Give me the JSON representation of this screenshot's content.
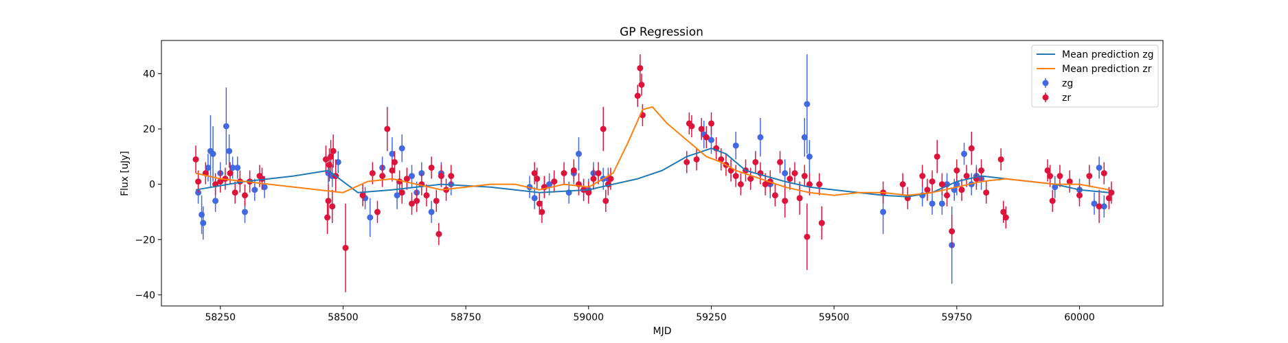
{
  "chart_data": {
    "type": "scatter",
    "title": "GP Regression",
    "xlabel": "MJD",
    "ylabel": "Flux [uJy]",
    "xlim": [
      58130,
      60170
    ],
    "ylim": [
      -44,
      52
    ],
    "xticks": [
      58250,
      58500,
      58750,
      59000,
      59250,
      59500,
      59750,
      60000
    ],
    "yticks": [
      -40,
      -20,
      0,
      20,
      40
    ],
    "grid": false,
    "legend_position": "top-right",
    "legend": [
      "Mean prediction zg",
      "Mean prediction zr",
      "zg",
      "zr"
    ],
    "colors": {
      "mean_zg": "#1f77b4",
      "mean_zr": "#ff7f0e",
      "zg": "#4169e1",
      "zr": "#dc143c"
    },
    "mean_prediction_zg": {
      "x": [
        58200,
        58300,
        58400,
        58470,
        58530,
        58600,
        58700,
        58800,
        58900,
        59000,
        59050,
        59100,
        59150,
        59200,
        59250,
        59280,
        59320,
        59400,
        59450,
        59500,
        59550,
        59600,
        59650,
        59700,
        59750,
        59800,
        59850,
        59900,
        59950,
        60000,
        60060
      ],
      "y": [
        -2,
        1,
        3,
        5,
        -3,
        -2,
        0,
        -1,
        -3,
        -2,
        0,
        2,
        5,
        10,
        13,
        11,
        5,
        1,
        -1,
        -2,
        -3,
        -4,
        -4.5,
        -3,
        1,
        3,
        2,
        1,
        0,
        -2,
        -3
      ]
    },
    "mean_prediction_zr": {
      "x": [
        58200,
        58250,
        58300,
        58350,
        58400,
        58450,
        58500,
        58550,
        58600,
        58650,
        58700,
        58750,
        58800,
        58850,
        58900,
        58950,
        59000,
        59050,
        59080,
        59110,
        59130,
        59160,
        59200,
        59240,
        59270,
        59300,
        59350,
        59400,
        59450,
        59500,
        59550,
        59600,
        59650,
        59700,
        59750,
        59800,
        59850,
        59900,
        59950,
        60000,
        60060
      ],
      "y": [
        4,
        2,
        1,
        0,
        -1,
        -2,
        -3,
        1,
        2,
        0,
        -2,
        -1,
        0,
        0,
        -2,
        0,
        -1,
        4,
        15,
        27,
        28,
        22,
        16,
        10,
        8,
        5,
        2,
        -1,
        -3,
        -4,
        -3,
        -3,
        -4,
        -3,
        -1,
        1,
        2,
        1,
        0,
        0,
        -2
      ]
    },
    "series": [
      {
        "name": "zg",
        "x": [
          58205,
          58212,
          58215,
          58225,
          58230,
          58235,
          58240,
          58250,
          58262,
          58268,
          58275,
          58285,
          58300,
          58320,
          58340,
          58470,
          58478,
          58490,
          58545,
          58555,
          58580,
          58600,
          58610,
          58620,
          58640,
          58650,
          58660,
          58680,
          58700,
          58720,
          58880,
          58890,
          58910,
          58920,
          58960,
          58970,
          58980,
          58990,
          59000,
          59010,
          59030,
          59040,
          59235,
          59250,
          59300,
          59350,
          59370,
          59400,
          59440,
          59445,
          59450,
          59600,
          59680,
          59700,
          59720,
          59730,
          59740,
          59745,
          59750,
          59765,
          59780,
          59790,
          59800,
          59950,
          60000,
          60030,
          60040,
          60050
        ],
        "y": [
          -3,
          -11,
          -14,
          6,
          12,
          11,
          -6,
          4,
          21,
          12,
          6,
          6,
          -10,
          -2,
          -1,
          4,
          3,
          8,
          -5,
          -12,
          6,
          11,
          -4,
          13,
          3,
          -3,
          4,
          -10,
          4,
          0,
          -1,
          -5,
          -1,
          0,
          -3,
          4,
          11,
          -2,
          -2,
          4,
          2,
          2,
          18,
          16,
          14,
          17,
          0,
          4,
          17,
          29,
          10,
          -10,
          -4,
          -7,
          -7,
          0,
          -22,
          -2,
          0,
          11,
          0,
          3,
          2,
          -1,
          -2,
          -7,
          6,
          -8
        ],
        "err": [
          4,
          7,
          6,
          5,
          13,
          10,
          4,
          4,
          14,
          6,
          4,
          4,
          4,
          4,
          4,
          4,
          4,
          4,
          4,
          7,
          4,
          6,
          5,
          5,
          4,
          4,
          4,
          4,
          4,
          4,
          4,
          4,
          4,
          4,
          4,
          4,
          6,
          4,
          4,
          4,
          4,
          4,
          5,
          5,
          5,
          7,
          5,
          5,
          7,
          18,
          6,
          8,
          4,
          4,
          4,
          4,
          14,
          4,
          4,
          4,
          4,
          4,
          4,
          4,
          4,
          4,
          4,
          4
        ]
      },
      {
        "name": "zr",
        "x": [
          58200,
          58205,
          58220,
          58240,
          58250,
          58260,
          58270,
          58280,
          58290,
          58300,
          58310,
          58330,
          58335,
          58465,
          58468,
          58470,
          58472,
          58475,
          58478,
          58480,
          58485,
          58505,
          58540,
          58560,
          58570,
          58580,
          58590,
          58600,
          58605,
          58615,
          58620,
          58630,
          58640,
          58650,
          58660,
          58670,
          58680,
          58690,
          58695,
          58700,
          58710,
          58720,
          58890,
          58895,
          58900,
          58905,
          58910,
          58930,
          58950,
          58970,
          58980,
          58990,
          59000,
          59010,
          59020,
          59030,
          59035,
          59040,
          59045,
          59100,
          59105,
          59108,
          59110,
          59200,
          59205,
          59210,
          59220,
          59230,
          59240,
          59250,
          59260,
          59270,
          59280,
          59290,
          59300,
          59310,
          59320,
          59330,
          59340,
          59350,
          59360,
          59370,
          59380,
          59390,
          59400,
          59410,
          59420,
          59430,
          59440,
          59445,
          59450,
          59470,
          59475,
          59600,
          59640,
          59650,
          59680,
          59690,
          59700,
          59710,
          59720,
          59730,
          59740,
          59750,
          59760,
          59770,
          59780,
          59790,
          59800,
          59810,
          59840,
          59845,
          59850,
          59935,
          59940,
          59945,
          59960,
          59980,
          60000,
          60020,
          60040,
          60050,
          60060,
          60065
        ],
        "y": [
          9,
          1,
          4,
          0,
          1,
          2,
          4,
          -3,
          1,
          -4,
          1,
          3,
          2,
          9,
          -12,
          -6,
          7,
          10,
          -8,
          12,
          3,
          -23,
          -4,
          4,
          -10,
          3,
          20,
          5,
          8,
          1,
          -3,
          2,
          -7,
          -6,
          0,
          -4,
          6,
          -6,
          -18,
          3,
          -2,
          3,
          4,
          2,
          -7,
          -10,
          -1,
          1,
          4,
          5,
          0,
          -2,
          -3,
          2,
          4,
          20,
          -6,
          0,
          2,
          32,
          42,
          36,
          25,
          8,
          22,
          21,
          9,
          20,
          17,
          22,
          13,
          9,
          7,
          5,
          3,
          0,
          5,
          2,
          8,
          4,
          0,
          1,
          -4,
          8,
          -6,
          2,
          4,
          -5,
          3,
          -19,
          0,
          0,
          -14,
          -3,
          0,
          -5,
          3,
          -2,
          1,
          10,
          0,
          -4,
          -17,
          5,
          -2,
          3,
          13,
          2,
          5,
          -3,
          9,
          -10,
          -12,
          5,
          3,
          -6,
          3,
          1,
          -4,
          3,
          -8,
          4,
          -5,
          -3
        ],
        "err": [
          5,
          4,
          4,
          4,
          4,
          4,
          4,
          4,
          4,
          4,
          4,
          4,
          4,
          5,
          6,
          6,
          6,
          6,
          6,
          6,
          6,
          16,
          4,
          4,
          4,
          4,
          8,
          4,
          4,
          4,
          4,
          4,
          4,
          4,
          4,
          4,
          4,
          4,
          4,
          4,
          4,
          4,
          4,
          4,
          4,
          4,
          4,
          4,
          4,
          4,
          4,
          4,
          4,
          4,
          4,
          8,
          4,
          4,
          4,
          4,
          5,
          4,
          4,
          4,
          4,
          4,
          4,
          4,
          4,
          4,
          4,
          4,
          4,
          4,
          4,
          4,
          4,
          4,
          4,
          4,
          4,
          4,
          4,
          4,
          6,
          4,
          4,
          6,
          4,
          12,
          4,
          4,
          6,
          4,
          4,
          4,
          4,
          4,
          4,
          6,
          4,
          4,
          6,
          4,
          4,
          4,
          6,
          4,
          4,
          4,
          4,
          4,
          4,
          4,
          4,
          4,
          4,
          4,
          4,
          4,
          6,
          4,
          4,
          4
        ]
      }
    ]
  }
}
